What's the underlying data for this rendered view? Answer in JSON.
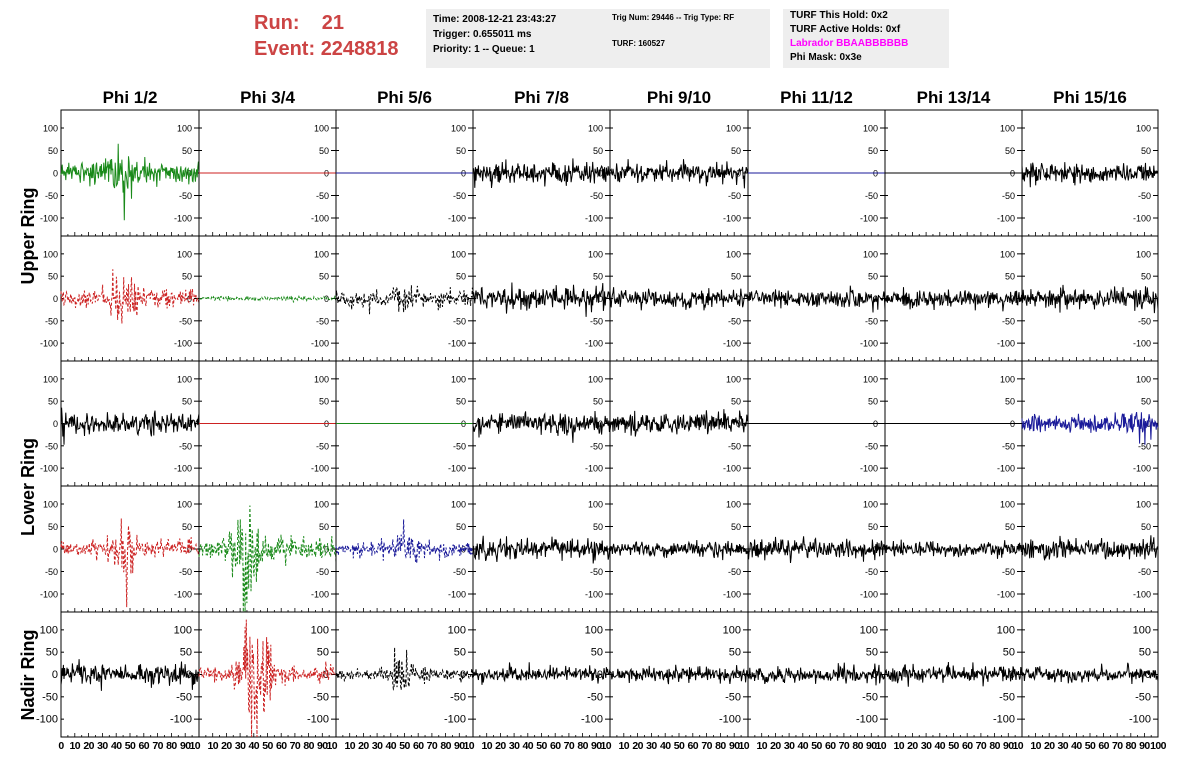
{
  "header": {
    "run_label": "Run:",
    "run_value": "21",
    "event_label": "Event:",
    "event_value": "2248818"
  },
  "info_boxes": {
    "time": "Time: 2008-12-21 23:43:27",
    "trigger": "Trigger: 0.655011 ms",
    "priority": "Priority: 1 -- Queue: 1",
    "trig_num": "Trig Num: 29446 -- Trig Type: RF",
    "turf": "TURF: 160527",
    "turf_this_hold": "TURF This Hold: 0x2",
    "turf_active_holds": "TURF Active Holds: 0xf",
    "labrador": "Labrador BBAABBBBBB",
    "phi_mask": "Phi Mask: 0x3e"
  },
  "colors": {
    "run_text": "#cc4444",
    "labrador": "#ff00ff",
    "info_bg": "#eeeeee"
  },
  "chart_data": {
    "type": "line",
    "columns": [
      "Phi 1/2",
      "Phi 3/4",
      "Phi 5/6",
      "Phi 7/8",
      "Phi 9/10",
      "Phi 11/12",
      "Phi 13/14",
      "Phi 15/16"
    ],
    "rows": [
      "Upper Ring",
      "Upper Ring",
      "Lower Ring",
      "Lower Ring",
      "Nadir Ring"
    ],
    "row_labels": [
      "Upper Ring",
      "Lower Ring",
      "Nadir Ring"
    ],
    "xlim": [
      0,
      100
    ],
    "ylim": [
      -140,
      140
    ],
    "y_ticks": [
      100,
      50,
      0,
      -50,
      -100
    ],
    "x_ticks": [
      0,
      10,
      20,
      30,
      40,
      50,
      60,
      70,
      80,
      90,
      100
    ],
    "x_tick_labels_first": [
      "0",
      "10",
      "20",
      "30",
      "40",
      "50",
      "60",
      "70",
      "80",
      "90",
      "10"
    ],
    "x_tick_labels_mid": [
      "10",
      "20",
      "30",
      "40",
      "50",
      "60",
      "70",
      "80",
      "90",
      "10"
    ],
    "x_tick_labels_last": [
      "10",
      "20",
      "30",
      "40",
      "50",
      "60",
      "70",
      "80",
      "90",
      "100"
    ],
    "grid": false,
    "waveforms": [
      [
        {
          "color": "#1a8a1a",
          "dash": false,
          "amp": 15,
          "burst": 30,
          "center": 42,
          "flat": false
        },
        {
          "color": "#cc2222",
          "dash": false,
          "amp": 0,
          "burst": 0,
          "center": 50,
          "flat": true
        },
        {
          "color": "#1a1a99",
          "dash": false,
          "amp": 0,
          "burst": 0,
          "center": 50,
          "flat": true
        },
        {
          "color": "#000000",
          "dash": false,
          "amp": 14,
          "burst": 0,
          "center": 50,
          "flat": false
        },
        {
          "color": "#000000",
          "dash": false,
          "amp": 14,
          "burst": 0,
          "center": 50,
          "flat": false
        },
        {
          "color": "#1a1a99",
          "dash": false,
          "amp": 0,
          "burst": 0,
          "center": 50,
          "flat": true
        },
        {
          "color": "#000000",
          "dash": false,
          "amp": 0,
          "burst": 0,
          "center": 50,
          "flat": true
        },
        {
          "color": "#000000",
          "dash": false,
          "amp": 14,
          "burst": 0,
          "center": 50,
          "flat": false
        }
      ],
      [
        {
          "color": "#cc2222",
          "dash": true,
          "amp": 12,
          "burst": 35,
          "center": 45,
          "flat": false
        },
        {
          "color": "#1a8a1a",
          "dash": true,
          "amp": 3,
          "burst": 0,
          "center": 50,
          "flat": false
        },
        {
          "color": "#000000",
          "dash": true,
          "amp": 10,
          "burst": 12,
          "center": 50,
          "flat": false
        },
        {
          "color": "#000000",
          "dash": false,
          "amp": 14,
          "burst": 0,
          "center": 50,
          "flat": false
        },
        {
          "color": "#000000",
          "dash": false,
          "amp": 12,
          "burst": 0,
          "center": 50,
          "flat": false
        },
        {
          "color": "#000000",
          "dash": false,
          "amp": 12,
          "burst": 0,
          "center": 50,
          "flat": false
        },
        {
          "color": "#000000",
          "dash": false,
          "amp": 12,
          "burst": 0,
          "center": 50,
          "flat": false
        },
        {
          "color": "#000000",
          "dash": false,
          "amp": 14,
          "burst": 0,
          "center": 50,
          "flat": false
        }
      ],
      [
        {
          "color": "#000000",
          "dash": false,
          "amp": 14,
          "burst": 0,
          "center": 50,
          "flat": false
        },
        {
          "color": "#cc2222",
          "dash": false,
          "amp": 0,
          "burst": 0,
          "center": 50,
          "flat": true
        },
        {
          "color": "#1a8a1a",
          "dash": false,
          "amp": 0,
          "burst": 0,
          "center": 50,
          "flat": true
        },
        {
          "color": "#000000",
          "dash": false,
          "amp": 14,
          "burst": 0,
          "center": 50,
          "flat": false
        },
        {
          "color": "#000000",
          "dash": false,
          "amp": 14,
          "burst": 0,
          "center": 50,
          "flat": false
        },
        {
          "color": "#000000",
          "dash": false,
          "amp": 0,
          "burst": 0,
          "center": 50,
          "flat": true
        },
        {
          "color": "#000000",
          "dash": false,
          "amp": 0,
          "burst": 0,
          "center": 50,
          "flat": true
        },
        {
          "color": "#1a1a99",
          "dash": false,
          "amp": 12,
          "burst": 8,
          "center": 88,
          "flat": false
        }
      ],
      [
        {
          "color": "#cc2222",
          "dash": true,
          "amp": 12,
          "burst": 40,
          "center": 45,
          "flat": false
        },
        {
          "color": "#1a8a1a",
          "dash": true,
          "amp": 14,
          "burst": 70,
          "center": 35,
          "flat": false
        },
        {
          "color": "#1a1a99",
          "dash": true,
          "amp": 10,
          "burst": 15,
          "center": 50,
          "flat": false
        },
        {
          "color": "#000000",
          "dash": false,
          "amp": 14,
          "burst": 0,
          "center": 50,
          "flat": false
        },
        {
          "color": "#000000",
          "dash": false,
          "amp": 10,
          "burst": 0,
          "center": 50,
          "flat": false
        },
        {
          "color": "#000000",
          "dash": false,
          "amp": 14,
          "burst": 0,
          "center": 50,
          "flat": false
        },
        {
          "color": "#000000",
          "dash": false,
          "amp": 10,
          "burst": 0,
          "center": 50,
          "flat": false
        },
        {
          "color": "#000000",
          "dash": false,
          "amp": 14,
          "burst": 0,
          "center": 50,
          "flat": false
        }
      ],
      [
        {
          "color": "#000000",
          "dash": false,
          "amp": 14,
          "burst": 0,
          "center": 50,
          "flat": false
        },
        {
          "color": "#cc2222",
          "dash": true,
          "amp": 12,
          "burst": 95,
          "center": 42,
          "flat": false
        },
        {
          "color": "#000000",
          "dash": true,
          "amp": 8,
          "burst": 22,
          "center": 45,
          "flat": false
        },
        {
          "color": "#000000",
          "dash": false,
          "amp": 10,
          "burst": 0,
          "center": 50,
          "flat": false
        },
        {
          "color": "#000000",
          "dash": false,
          "amp": 10,
          "burst": 0,
          "center": 50,
          "flat": false
        },
        {
          "color": "#000000",
          "dash": false,
          "amp": 12,
          "burst": 0,
          "center": 50,
          "flat": false
        },
        {
          "color": "#000000",
          "dash": false,
          "amp": 12,
          "burst": 0,
          "center": 50,
          "flat": false
        },
        {
          "color": "#000000",
          "dash": false,
          "amp": 10,
          "burst": 0,
          "center": 50,
          "flat": false
        }
      ]
    ]
  }
}
